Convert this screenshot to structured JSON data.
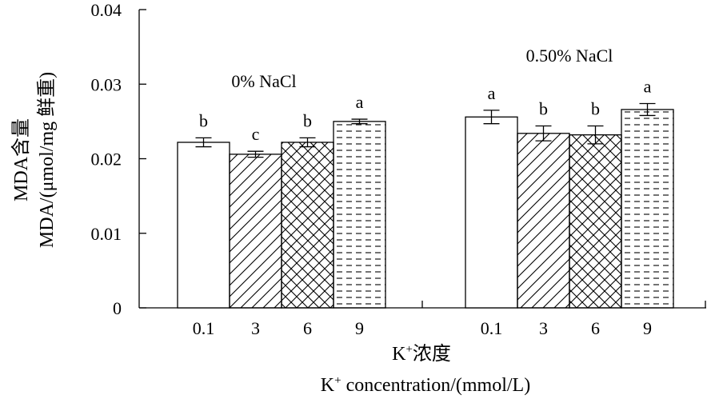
{
  "chart_data": {
    "type": "bar",
    "ylabel_cn": "MDA含量",
    "ylabel_en": "MDA/(μmol/mg 鲜重)",
    "xlabel_cn_main": "K",
    "xlabel_cn_sup": "+",
    "xlabel_cn_rest": "浓度",
    "xlabel_en_main": "K",
    "xlabel_en_sup": "+",
    "xlabel_en_rest": " concentration/(mmol/L)",
    "ylim": [
      0,
      0.04
    ],
    "yticks": [
      "0",
      "0.01",
      "0.02",
      "0.03",
      "0.04"
    ],
    "categories": [
      "0.1",
      "3",
      "6",
      "9"
    ],
    "groups": [
      {
        "name": "0% NaCl",
        "values": [
          0.0222,
          0.0206,
          0.0222,
          0.025
        ],
        "errors": [
          0.0006,
          0.0004,
          0.0006,
          0.0003
        ],
        "letters": [
          "b",
          "c",
          "b",
          "a"
        ]
      },
      {
        "name": "0.50% NaCl",
        "values": [
          0.0256,
          0.0234,
          0.0232,
          0.0266
        ],
        "errors": [
          0.0009,
          0.001,
          0.0012,
          0.0008
        ],
        "letters": [
          "a",
          "b",
          "b",
          "a"
        ]
      }
    ]
  }
}
